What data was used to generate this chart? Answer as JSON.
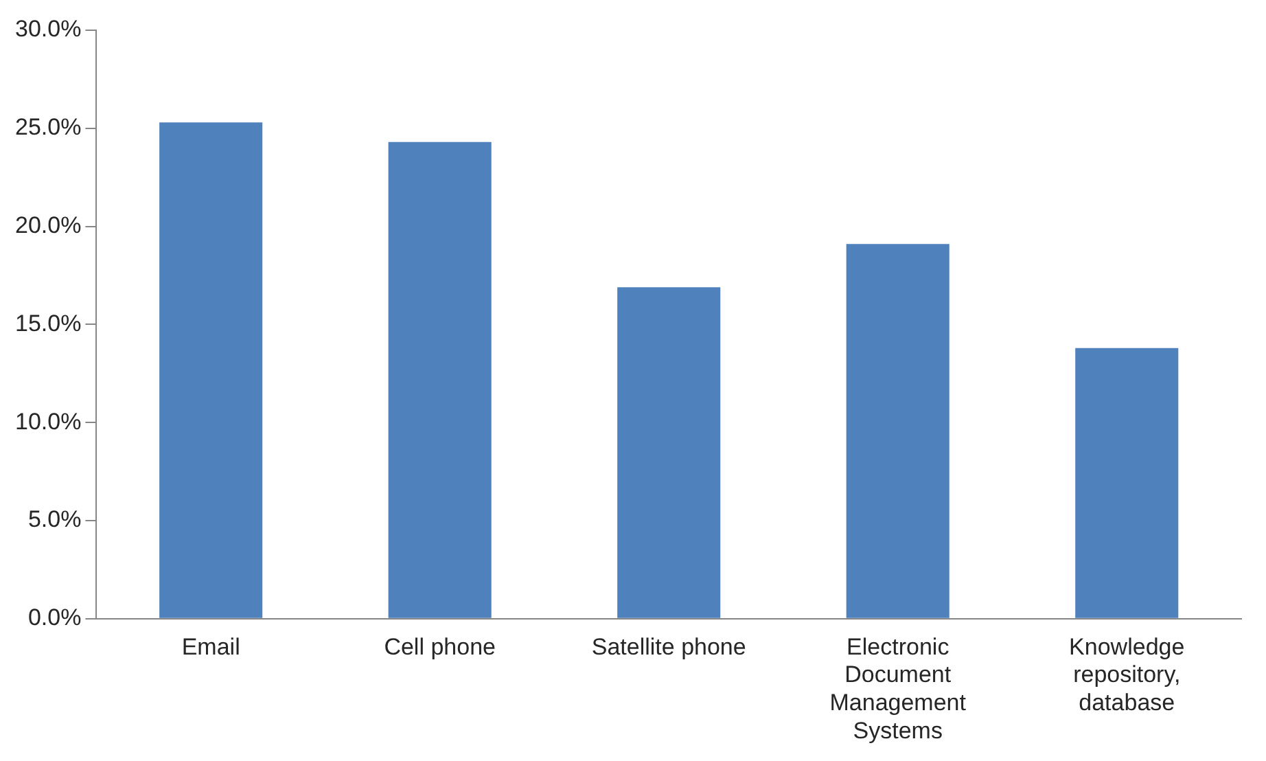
{
  "chart_data": {
    "type": "bar",
    "categories": [
      "Email",
      "Cell phone",
      "Satellite phone",
      "Electronic Document Management Systems",
      "Knowledge repository, database"
    ],
    "values": [
      25.3,
      24.3,
      16.9,
      19.1,
      13.8
    ],
    "color": "#4f81bd",
    "ylim": [
      0,
      30
    ],
    "yticks": [
      {
        "value": 0,
        "label": "0.0%"
      },
      {
        "value": 5,
        "label": "5.0%"
      },
      {
        "value": 10,
        "label": "10.0%"
      },
      {
        "value": 15,
        "label": "15.0%"
      },
      {
        "value": 20,
        "label": "20.0%"
      },
      {
        "value": 25,
        "label": "25.0%"
      },
      {
        "value": 30,
        "label": "30.0%"
      }
    ],
    "grid": false,
    "legend": false
  }
}
